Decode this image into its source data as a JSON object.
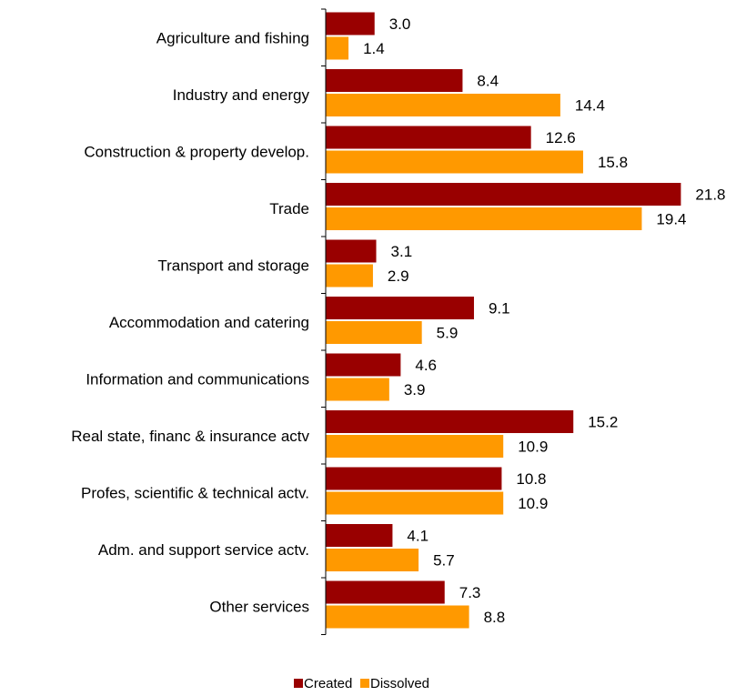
{
  "chart_data": {
    "type": "bar",
    "orientation": "horizontal",
    "categories": [
      "Agriculture and fishing",
      "Industry and energy",
      "Construction & property develop.",
      "Trade",
      "Transport and storage",
      "Accommodation and catering",
      "Information and communications",
      "Real state, financ & insurance actv",
      "Profes, scientific & technical actv.",
      "Adm. and support service actv.",
      "Other services"
    ],
    "series": [
      {
        "name": "Created",
        "color": "#990000",
        "values": [
          3.0,
          8.4,
          12.6,
          21.8,
          3.1,
          9.1,
          4.6,
          15.2,
          10.8,
          4.1,
          7.3
        ],
        "labels": [
          "3.0",
          "8.4",
          "12.6",
          "21.8",
          "3.1",
          "9.1",
          "4.6",
          "15.2",
          "10.8",
          "4.1",
          "7.3"
        ]
      },
      {
        "name": "Dissolved",
        "color": "#FF9900",
        "values": [
          1.4,
          14.4,
          15.8,
          19.4,
          2.9,
          5.9,
          3.9,
          10.9,
          10.9,
          5.7,
          8.8
        ],
        "labels": [
          "1.4",
          "14.4",
          "15.8",
          "19.4",
          "2.9",
          "5.9",
          "3.9",
          "10.9",
          "10.9",
          "5.7",
          "8.8"
        ]
      }
    ],
    "xlim": [
      0,
      22
    ],
    "grid": false,
    "legend": "bottom-center",
    "title": "",
    "xlabel": "",
    "ylabel": ""
  }
}
